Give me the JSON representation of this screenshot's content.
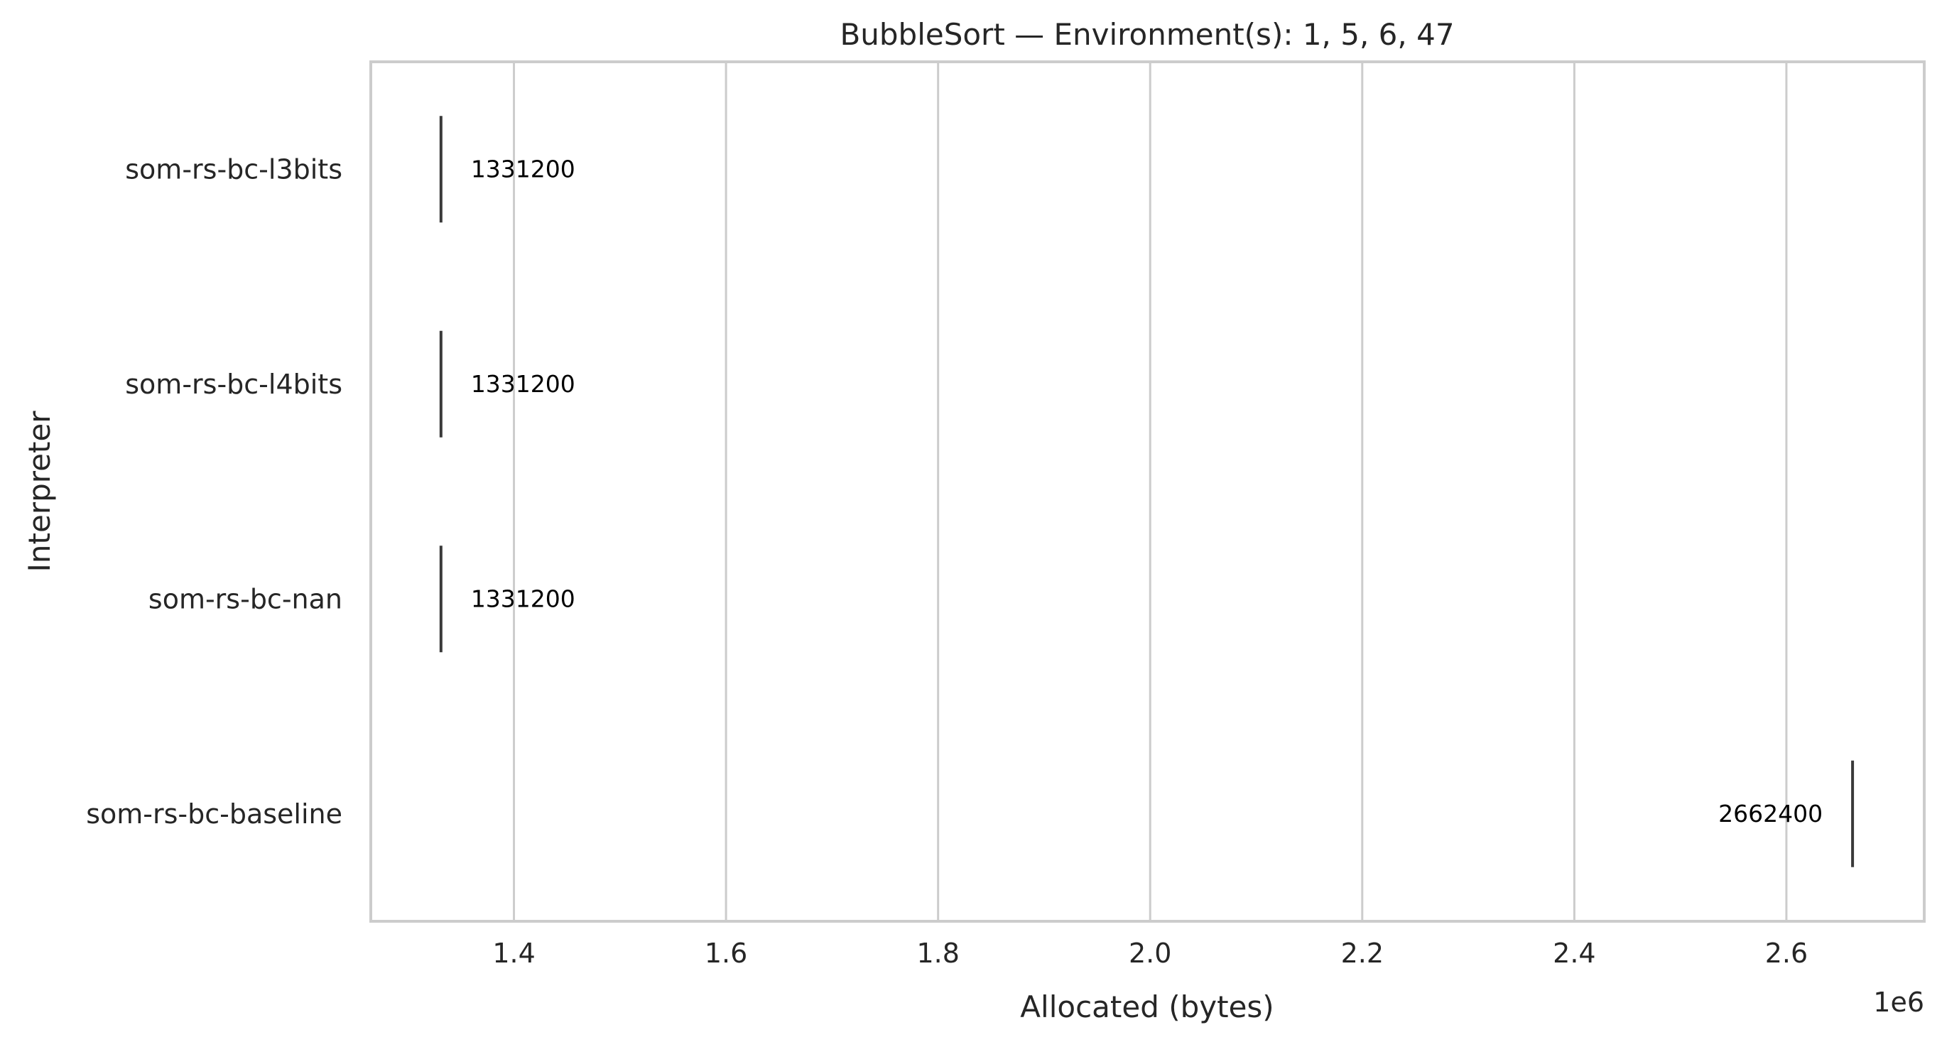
{
  "chart_data": {
    "type": "box",
    "title": "BubbleSort — Environment(s): 1, 5, 6, 47",
    "xlabel": "Allocated (bytes)",
    "ylabel": "Interpreter",
    "x_offset_label": "1e6",
    "xlim": [
      1.265,
      2.73
    ],
    "xticks": [
      1.4,
      1.6,
      1.8,
      2.0,
      2.2,
      2.4,
      2.6
    ],
    "xtick_labels": [
      "1.4",
      "1.6",
      "1.8",
      "2.0",
      "2.2",
      "2.4",
      "2.6"
    ],
    "grid": true,
    "categories": [
      "som-rs-bc-l3bits",
      "som-rs-bc-l4bits",
      "som-rs-bc-nan",
      "som-rs-bc-baseline"
    ],
    "values": [
      1331200,
      1331200,
      1331200,
      2662400
    ],
    "value_labels": [
      "1331200",
      "1331200",
      "1331200",
      "2662400"
    ],
    "colors": {
      "mark": "#3a3a3a",
      "grid": "#cccccc",
      "text": "#262626"
    }
  }
}
